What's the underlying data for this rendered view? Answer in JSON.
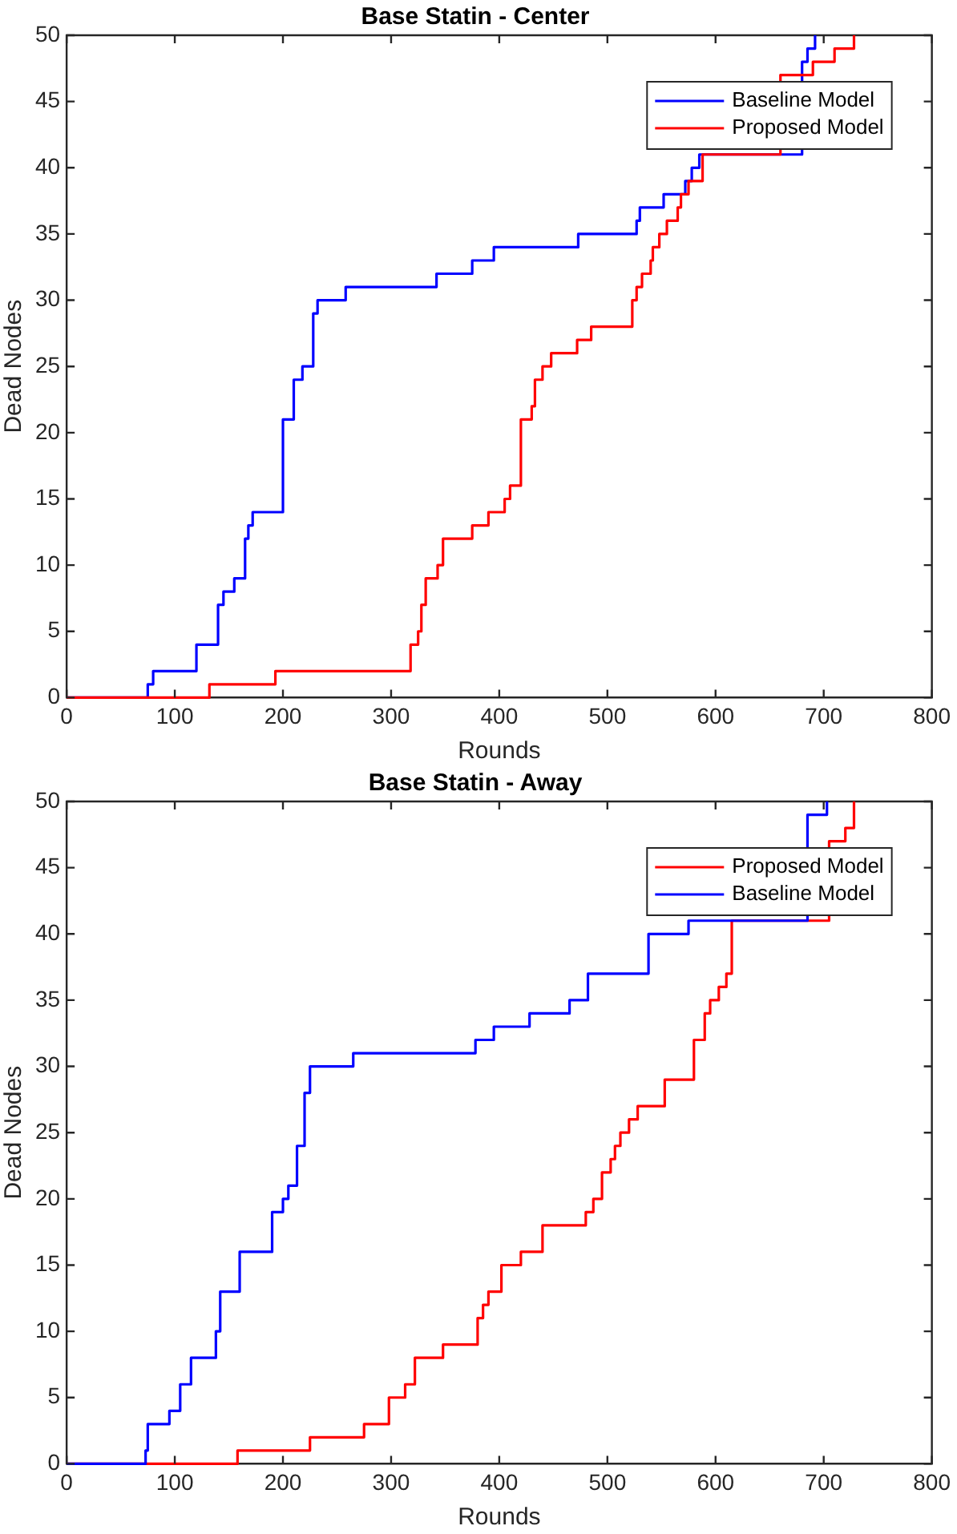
{
  "chart_data": [
    {
      "type": "step",
      "title": "Base Statin - Center",
      "xlabel": "Rounds",
      "ylabel": "Dead Nodes",
      "xlim": [
        0,
        800
      ],
      "xticks": [
        0,
        100,
        200,
        300,
        400,
        500,
        600,
        700,
        800
      ],
      "ylim": [
        0,
        50
      ],
      "yticks": [
        0,
        5,
        10,
        15,
        20,
        25,
        30,
        35,
        40,
        45,
        50
      ],
      "grid": false,
      "legend": "top right",
      "marker": "none",
      "line_style": "solid",
      "series": [
        {
          "name": "Baseline Model",
          "color": "#0000ff",
          "x": [
            0,
            75,
            80,
            120,
            140,
            145,
            155,
            165,
            168,
            172,
            200,
            210,
            218,
            228,
            232,
            258,
            342,
            375,
            395,
            473,
            527,
            530,
            552,
            572,
            578,
            585,
            612,
            640,
            680,
            685,
            692
          ],
          "values": [
            0,
            1,
            2,
            4,
            7,
            8,
            9,
            12,
            13,
            14,
            21,
            24,
            25,
            29,
            30,
            31,
            32,
            33,
            34,
            35,
            36,
            37,
            38,
            39,
            40,
            41,
            null,
            null,
            48,
            49,
            50
          ]
        },
        {
          "name": "Proposed Model",
          "color": "#ff0000",
          "x": [
            0,
            132,
            193,
            318,
            325,
            328,
            332,
            343,
            348,
            375,
            390,
            405,
            410,
            420,
            430,
            433,
            440,
            448,
            472,
            485,
            523,
            527,
            532,
            540,
            542,
            548,
            555,
            565,
            568,
            575,
            588,
            625,
            640,
            648,
            660,
            690,
            710,
            728
          ],
          "values": [
            0,
            1,
            2,
            4,
            5,
            7,
            9,
            10,
            12,
            13,
            14,
            15,
            16,
            21,
            22,
            24,
            25,
            26,
            27,
            28,
            30,
            31,
            32,
            33,
            34,
            35,
            36,
            37,
            38,
            39,
            41,
            null,
            null,
            null,
            47,
            48,
            49,
            50
          ]
        }
      ]
    },
    {
      "type": "step",
      "title": "Base Statin - Away",
      "xlabel": "Rounds",
      "ylabel": "Dead Nodes",
      "xlim": [
        0,
        800
      ],
      "xticks": [
        0,
        100,
        200,
        300,
        400,
        500,
        600,
        700,
        800
      ],
      "ylim": [
        0,
        50
      ],
      "yticks": [
        0,
        5,
        10,
        15,
        20,
        25,
        30,
        35,
        40,
        45,
        50
      ],
      "grid": false,
      "legend": "top right",
      "marker": "none",
      "line_style": "solid",
      "series": [
        {
          "name": "Proposed Model",
          "color": "#ff0000",
          "x": [
            0,
            158,
            225,
            275,
            298,
            313,
            322,
            348,
            380,
            385,
            390,
            402,
            420,
            440,
            480,
            487,
            495,
            503,
            507,
            512,
            520,
            528,
            553,
            580,
            590,
            595,
            603,
            610,
            615,
            635,
            690,
            705,
            720,
            728
          ],
          "values": [
            0,
            1,
            2,
            3,
            5,
            6,
            8,
            9,
            11,
            12,
            13,
            15,
            16,
            18,
            19,
            20,
            22,
            23,
            24,
            25,
            26,
            27,
            29,
            32,
            34,
            35,
            36,
            37,
            41,
            null,
            null,
            47,
            48,
            50
          ]
        },
        {
          "name": "Baseline Model",
          "color": "#0000ff",
          "x": [
            0,
            73,
            75,
            95,
            105,
            115,
            138,
            142,
            160,
            190,
            200,
            205,
            213,
            220,
            225,
            265,
            378,
            395,
            428,
            465,
            482,
            538,
            575,
            640,
            660,
            667,
            685,
            703
          ],
          "values": [
            0,
            1,
            3,
            4,
            6,
            8,
            10,
            13,
            16,
            19,
            20,
            21,
            24,
            28,
            30,
            31,
            32,
            33,
            34,
            35,
            37,
            40,
            41,
            null,
            null,
            null,
            49,
            50
          ]
        }
      ]
    }
  ]
}
